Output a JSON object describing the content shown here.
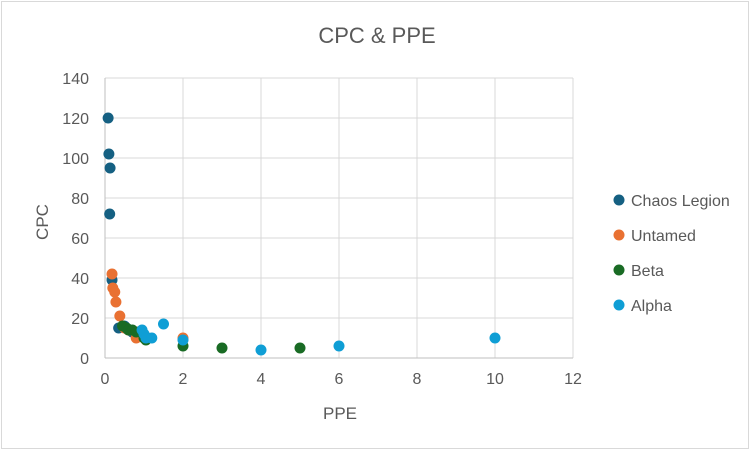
{
  "chart_data": {
    "type": "scatter",
    "title": "CPC & PPE",
    "xlabel": "PPE",
    "ylabel": "CPC",
    "xlim": [
      0,
      12
    ],
    "ylim": [
      0,
      140
    ],
    "xticks": [
      0,
      2,
      4,
      6,
      8,
      10,
      12
    ],
    "yticks": [
      0,
      20,
      40,
      60,
      80,
      100,
      120,
      140
    ],
    "grid": "vertical and horizontal major gridlines",
    "legend_position": "right",
    "series": [
      {
        "name": "Chaos Legion",
        "color": "#156082",
        "points": [
          [
            0.08,
            120
          ],
          [
            0.1,
            102
          ],
          [
            0.13,
            95
          ],
          [
            0.12,
            72
          ],
          [
            0.18,
            39
          ],
          [
            0.35,
            15
          ],
          [
            0.5,
            16
          ],
          [
            0.55,
            15
          ],
          [
            0.7,
            13
          ],
          [
            0.95,
            12
          ]
        ]
      },
      {
        "name": "Untamed",
        "color": "#E97132",
        "points": [
          [
            0.18,
            42
          ],
          [
            0.2,
            35
          ],
          [
            0.25,
            33
          ],
          [
            0.28,
            28
          ],
          [
            0.38,
            21
          ],
          [
            0.5,
            15
          ],
          [
            0.6,
            14
          ],
          [
            0.8,
            10
          ],
          [
            1.1,
            10
          ],
          [
            2.0,
            10
          ]
        ]
      },
      {
        "name": "Beta",
        "color": "#196B24",
        "points": [
          [
            0.45,
            16
          ],
          [
            0.55,
            15
          ],
          [
            0.6,
            14
          ],
          [
            0.7,
            14
          ],
          [
            0.8,
            13
          ],
          [
            1.0,
            10
          ],
          [
            1.05,
            9
          ],
          [
            2.0,
            6
          ],
          [
            3.0,
            5
          ],
          [
            5.0,
            5
          ]
        ]
      },
      {
        "name": "Alpha",
        "color": "#0F9ED5",
        "points": [
          [
            0.95,
            14
          ],
          [
            1.0,
            12
          ],
          [
            1.05,
            10
          ],
          [
            1.2,
            10
          ],
          [
            1.5,
            17
          ],
          [
            2.0,
            9
          ],
          [
            4.0,
            4
          ],
          [
            6.0,
            6
          ],
          [
            10.0,
            10
          ]
        ]
      }
    ]
  }
}
